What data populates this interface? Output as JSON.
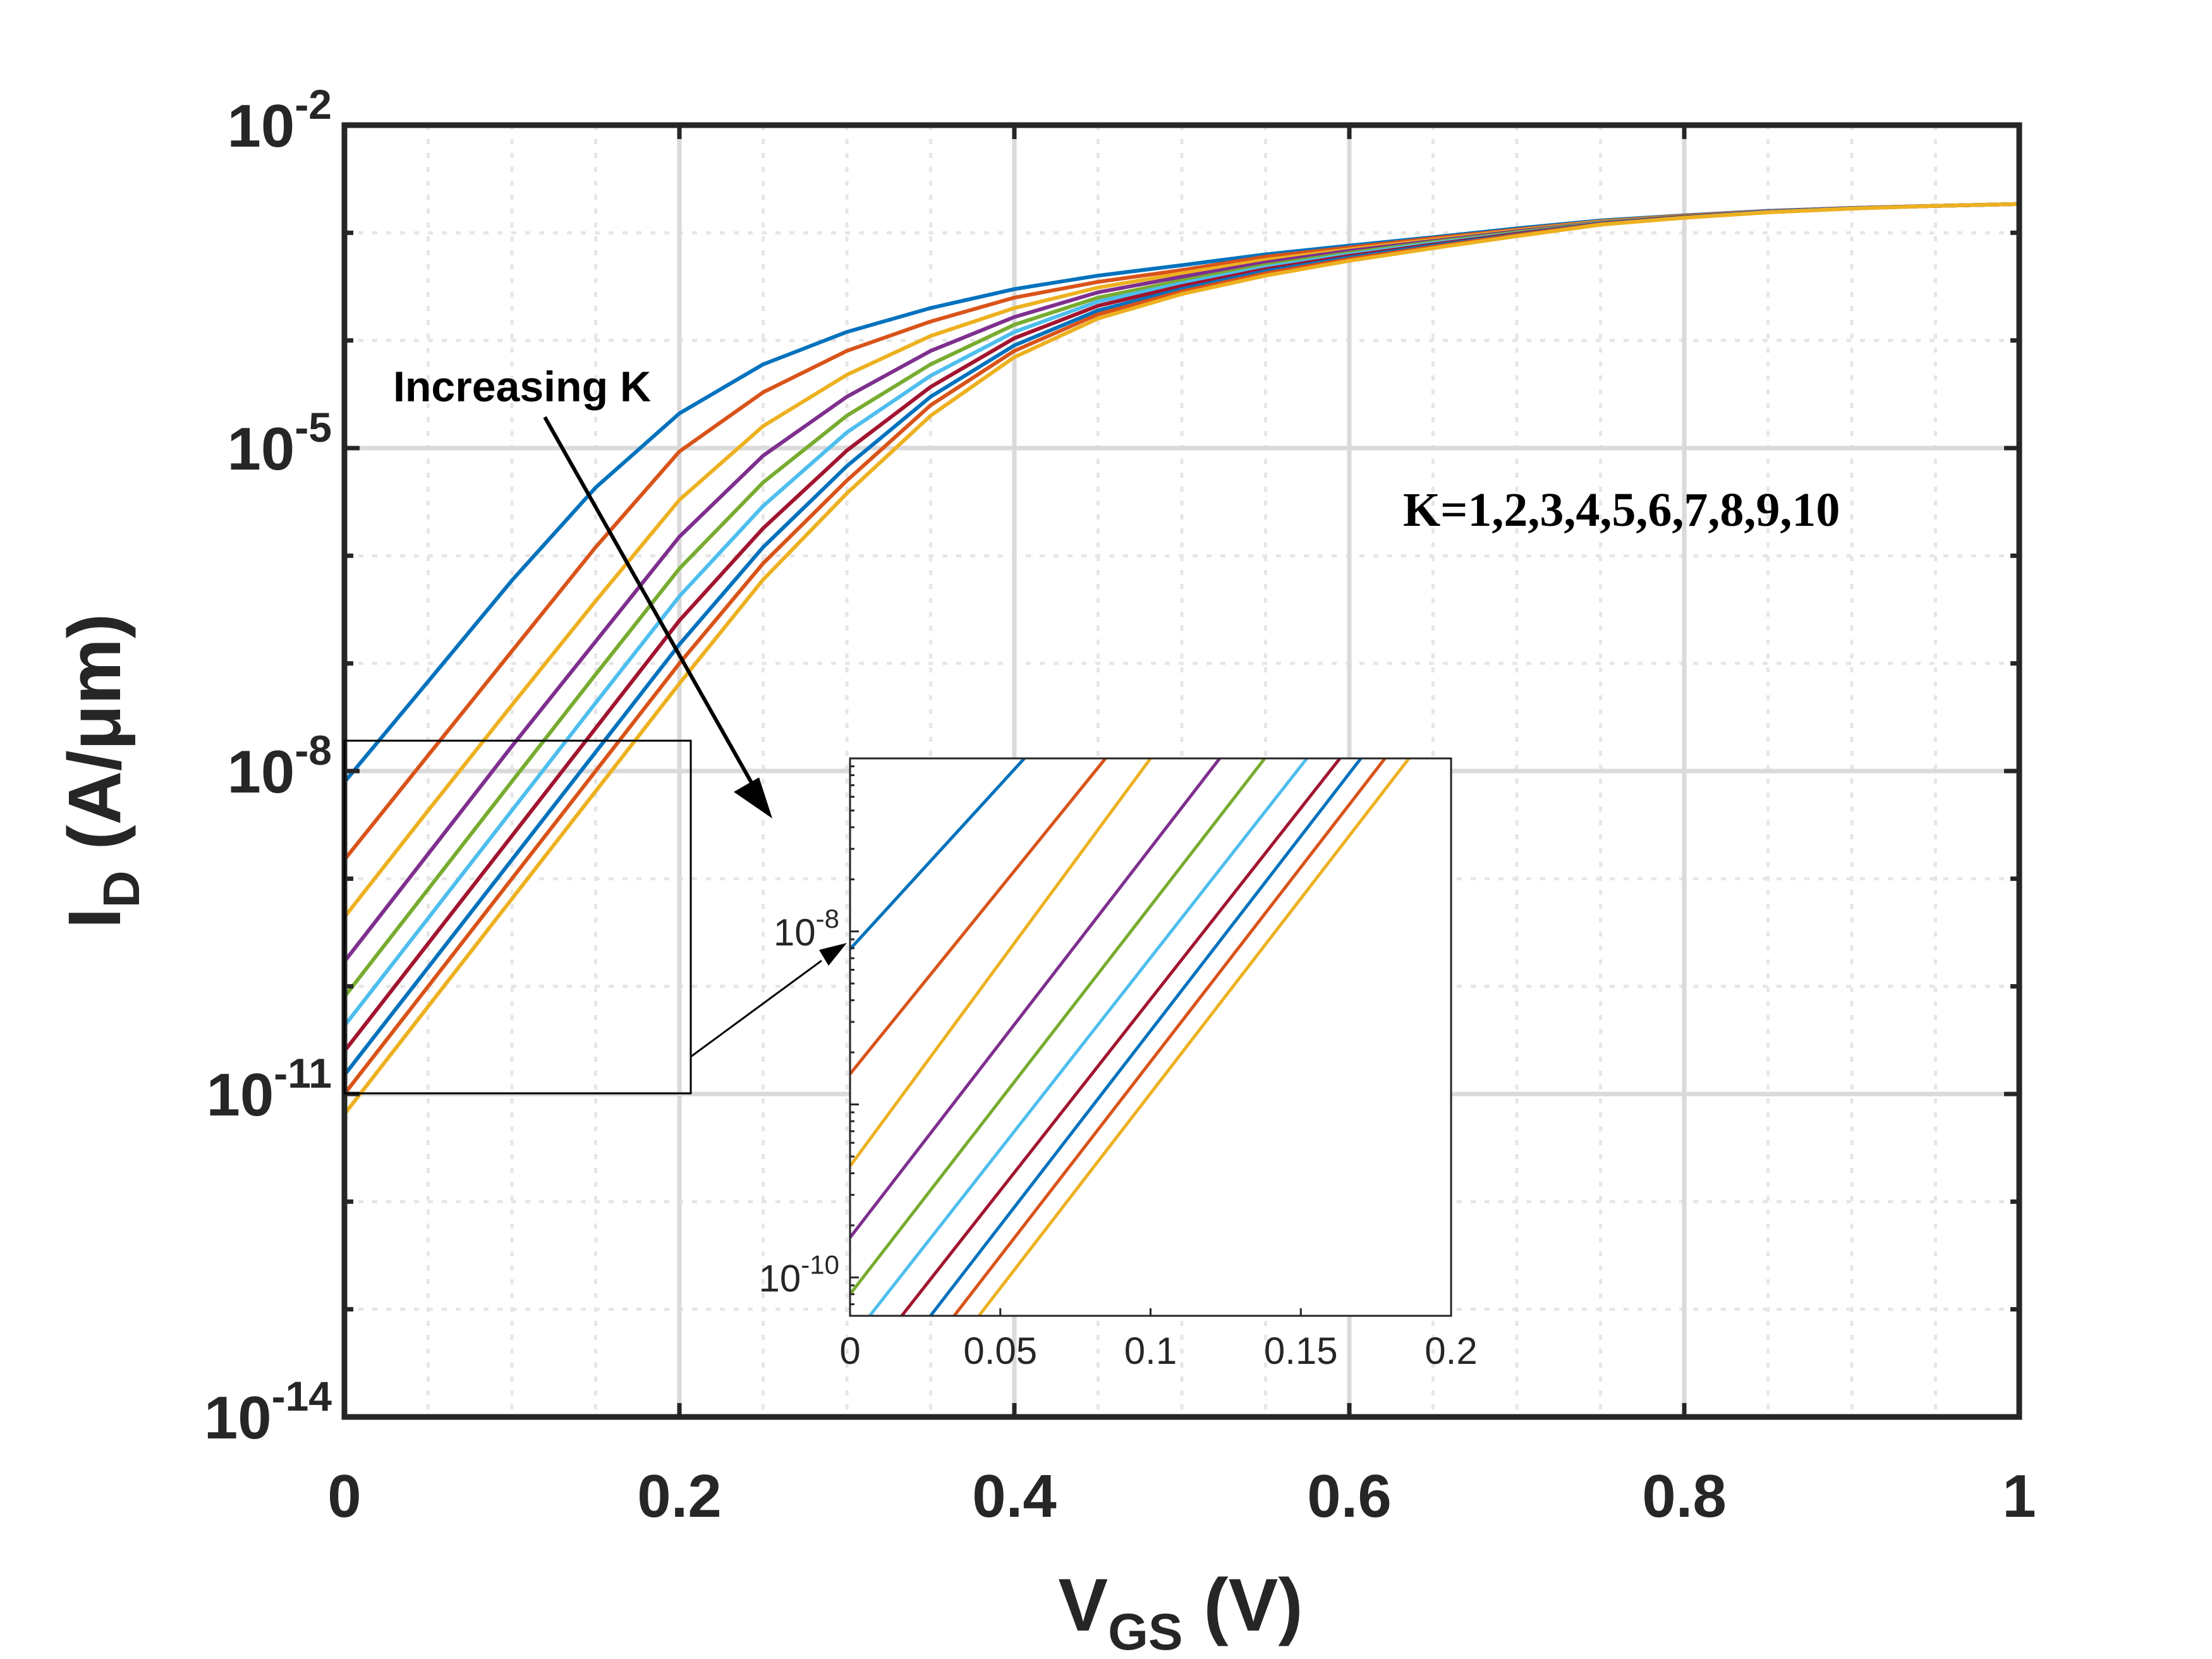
{
  "chart_data": [
    {
      "type": "line",
      "xlabel": {
        "base": "V",
        "sub": "GS",
        "rest": " (V)"
      },
      "ylabel": {
        "base": "I",
        "sub": "D",
        "rest": " (A/μm)"
      },
      "xlim": [
        0,
        1
      ],
      "ylim": [
        1e-14,
        0.01
      ],
      "yscale": "log",
      "grid": true,
      "minor_grid": true,
      "x_ticks": [
        {
          "value": 0,
          "label": "0"
        },
        {
          "value": 0.2,
          "label": "0.2"
        },
        {
          "value": 0.4,
          "label": "0.4"
        },
        {
          "value": 0.6,
          "label": "0.6"
        },
        {
          "value": 0.8,
          "label": "0.8"
        },
        {
          "value": 1,
          "label": "1"
        }
      ],
      "y_ticks": [
        {
          "value": 1e-14,
          "mant": "10",
          "exp": "-14"
        },
        {
          "value": 1e-11,
          "mant": "10",
          "exp": "-11"
        },
        {
          "value": 1e-08,
          "mant": "10",
          "exp": "-8"
        },
        {
          "value": 1e-05,
          "mant": "10",
          "exp": "-5"
        },
        {
          "value": 0.01,
          "mant": "10",
          "exp": "-2"
        }
      ],
      "x": [
        0,
        0.05,
        0.1,
        0.15,
        0.2,
        0.25,
        0.3,
        0.35,
        0.4,
        0.45,
        0.5,
        0.55,
        0.6,
        0.65,
        0.7,
        0.75,
        0.8,
        0.85,
        0.9,
        0.95,
        1.0
      ],
      "series": [
        {
          "color": "#0072bd",
          "values": [
            7.9e-09,
            6.8e-08,
            5.9e-07,
            4.3e-06,
            2.1e-05,
            6e-05,
            0.00012,
            0.0002,
            0.0003,
            0.0004,
            0.0005,
            0.00063,
            0.00076,
            0.00091,
            0.0011,
            0.0013,
            0.00145,
            0.0016,
            0.0017,
            0.00178,
            0.00185
          ]
        },
        {
          "color": "#d95319",
          "values": [
            1.5e-09,
            1.4e-08,
            1.3e-07,
            1.2e-06,
            9.3e-06,
            3.3e-05,
            8e-05,
            0.00015,
            0.00025,
            0.00035,
            0.00045,
            0.0006,
            0.00073,
            0.00089,
            0.00107,
            0.00128,
            0.00144,
            0.00159,
            0.0017,
            0.00178,
            0.00185
          ]
        },
        {
          "color": "#edb120",
          "values": [
            4.4e-10,
            4.3e-09,
            4.1e-08,
            3.8e-07,
            3.3e-06,
            1.6e-05,
            4.8e-05,
            0.00011,
            0.0002,
            0.00031,
            0.00042,
            0.00056,
            0.0007,
            0.00086,
            0.00105,
            0.00127,
            0.00143,
            0.00158,
            0.0017,
            0.00178,
            0.00185
          ]
        },
        {
          "color": "#7e2f8e",
          "values": [
            1.7e-10,
            1.7e-09,
            1.7e-08,
            1.6e-07,
            1.5e-06,
            8.5e-06,
            3e-05,
            8e-05,
            0.000165,
            0.00028,
            0.00039,
            0.00053,
            0.00068,
            0.00084,
            0.00103,
            0.00125,
            0.00142,
            0.00158,
            0.0017,
            0.00178,
            0.00185
          ]
        },
        {
          "color": "#77ac30",
          "values": [
            8e-11,
            8e-10,
            8e-09,
            7.9e-08,
            7.6e-07,
            4.8e-06,
            2e-05,
            6e-05,
            0.00014,
            0.00025,
            0.00036,
            0.0005,
            0.00065,
            0.00082,
            0.00101,
            0.00124,
            0.00141,
            0.00157,
            0.00169,
            0.00178,
            0.00185
          ]
        },
        {
          "color": "#4dbeee",
          "values": [
            4.3e-11,
            4.3e-10,
            4.3e-09,
            4.3e-08,
            4.2e-07,
            2.9e-06,
            1.4e-05,
            4.7e-05,
            0.00012,
            0.00023,
            0.00034,
            0.00048,
            0.00063,
            0.0008,
            0.00099,
            0.00123,
            0.0014,
            0.00157,
            0.00169,
            0.00178,
            0.00185
          ]
        },
        {
          "color": "#a2142f",
          "values": [
            2.5e-11,
            2.5e-10,
            2.5e-09,
            2.5e-08,
            2.5e-07,
            1.8e-06,
            9.5e-06,
            3.7e-05,
            0.000105,
            0.00021,
            0.00032,
            0.00046,
            0.00061,
            0.00078,
            0.00098,
            0.00122,
            0.0014,
            0.00156,
            0.00169,
            0.00178,
            0.00185
          ]
        },
        {
          "color": "#0072bd",
          "values": [
            1.5e-11,
            1.5e-10,
            1.5e-09,
            1.5e-08,
            1.5e-07,
            1.2e-06,
            6.8e-06,
            3e-05,
            9e-05,
            0.00019,
            0.0003,
            0.00044,
            0.00059,
            0.00076,
            0.00096,
            0.00121,
            0.00139,
            0.00156,
            0.00169,
            0.00178,
            0.00185
          ]
        },
        {
          "color": "#d95319",
          "values": [
            1e-11,
            1e-10,
            1e-09,
            1e-08,
            1e-07,
            8.5e-07,
            5e-06,
            2.5e-05,
            8e-05,
            0.000175,
            0.000285,
            0.00042,
            0.00057,
            0.00074,
            0.00095,
            0.0012,
            0.00138,
            0.00155,
            0.00168,
            0.00178,
            0.00185
          ]
        },
        {
          "color": "#edb120",
          "values": [
            6.5e-12,
            6.5e-11,
            6.5e-10,
            6.5e-09,
            6.5e-08,
            6e-07,
            3.8e-06,
            2e-05,
            7e-05,
            0.00016,
            0.00027,
            0.0004,
            0.00055,
            0.00072,
            0.00093,
            0.00119,
            0.00138,
            0.00155,
            0.00168,
            0.00178,
            0.00185
          ]
        }
      ],
      "annotations": {
        "increasing": "Increasing K",
        "k_values": "K=1,2,3,4,5,6,7,8,9,10"
      }
    },
    {
      "type": "line",
      "inset": true,
      "xlim": [
        0,
        0.2
      ],
      "ylim": [
        6e-11,
        1e-07
      ],
      "yscale": "log",
      "x_ticks": [
        {
          "value": 0,
          "label": "0"
        },
        {
          "value": 0.05,
          "label": "0.05"
        },
        {
          "value": 0.1,
          "label": "0.1"
        },
        {
          "value": 0.15,
          "label": "0.15"
        },
        {
          "value": 0.2,
          "label": "0.2"
        }
      ],
      "y_ticks": [
        {
          "value": 1e-08,
          "mant": "10",
          "exp": "-8"
        },
        {
          "value": 1e-10,
          "mant": "10",
          "exp": "-10"
        }
      ],
      "x_ends": [
        0.058,
        0.085,
        0.1,
        0.123,
        0.138,
        0.152,
        0.163,
        0.17,
        0.178,
        0.186
      ],
      "y_starts": [
        7.9e-09,
        1.5e-09,
        4.4e-10,
        1.7e-10,
        8e-11,
        4.3e-11,
        2.5e-11,
        1.5e-11,
        1e-11,
        6.5e-12
      ]
    }
  ]
}
